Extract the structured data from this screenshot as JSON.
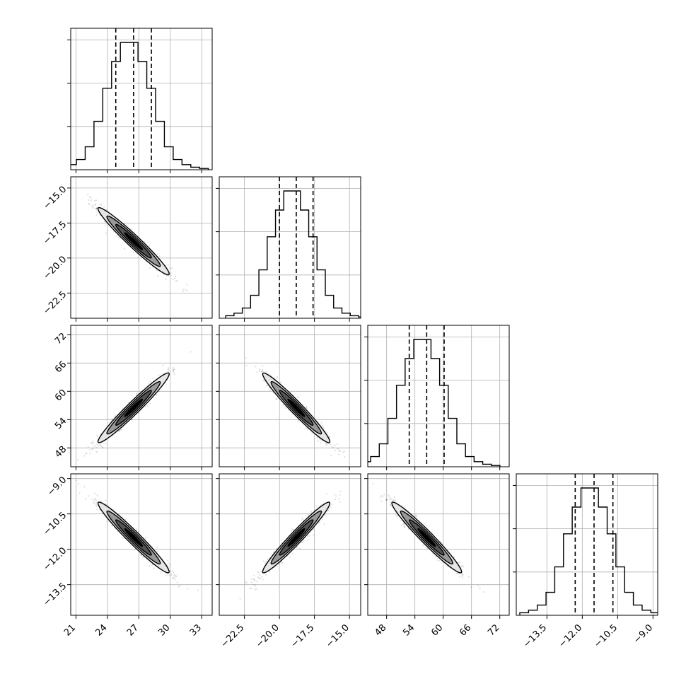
{
  "chart_data": {
    "type": "corner",
    "title": "",
    "parameters": [
      {
        "range": [
          20.5,
          34.0
        ],
        "ticks": [
          21,
          24,
          27,
          30,
          33
        ],
        "tick_labels": [
          "21",
          "24",
          "27",
          "30",
          "33"
        ],
        "mean": 26.5,
        "sd": 1.7,
        "quantiles": [
          24.8,
          26.5,
          28.2
        ],
        "hist_bins": [
          0.02,
          0.04,
          0.08,
          0.18,
          0.38,
          0.64,
          0.85,
          1.0,
          1.0,
          0.85,
          0.64,
          0.38,
          0.18,
          0.08,
          0.04,
          0.02,
          0.01
        ]
      },
      {
        "range": [
          -24.3,
          -14.2
        ],
        "ticks": [
          -22.5,
          -20.0,
          -17.5,
          -15.0
        ],
        "tick_labels": [
          "−22.5",
          "−20.0",
          "−17.5",
          "−15.0"
        ],
        "mean": -18.8,
        "sd": 1.2,
        "quantiles": [
          -20.0,
          -18.8,
          -17.6
        ],
        "hist_bins": [
          0.02,
          0.04,
          0.08,
          0.18,
          0.38,
          0.64,
          0.85,
          1.0,
          1.0,
          0.85,
          0.64,
          0.38,
          0.18,
          0.08,
          0.04,
          0.02,
          0.01
        ]
      },
      {
        "range": [
          44.0,
          74.0
        ],
        "ticks": [
          48,
          54,
          60,
          66,
          72
        ],
        "tick_labels": [
          "48",
          "54",
          "60",
          "66",
          "72"
        ],
        "mean": 56.5,
        "sd": 3.7,
        "quantiles": [
          52.8,
          56.5,
          60.2
        ],
        "hist_bins": [
          0.02,
          0.04,
          0.08,
          0.18,
          0.38,
          0.64,
          0.85,
          1.0,
          1.0,
          0.85,
          0.64,
          0.38,
          0.18,
          0.08,
          0.04,
          0.02,
          0.01
        ]
      },
      {
        "range": [
          -14.8,
          -8.8
        ],
        "ticks": [
          -13.5,
          -12.0,
          -10.5,
          -9.0
        ],
        "tick_labels": [
          "−13.5",
          "−12.0",
          "−10.5",
          "−9.0"
        ],
        "mean": -11.5,
        "sd": 0.75,
        "quantiles": [
          -12.3,
          -11.5,
          -10.7
        ],
        "hist_bins": [
          0.02,
          0.04,
          0.08,
          0.18,
          0.38,
          0.64,
          0.85,
          1.0,
          1.0,
          0.85,
          0.64,
          0.38,
          0.18,
          0.08,
          0.04,
          0.02,
          0.01
        ]
      }
    ],
    "correlations": [
      [
        1.0,
        -0.97,
        0.97,
        -0.97
      ],
      [
        -0.97,
        1.0,
        -0.97,
        0.97
      ],
      [
        0.97,
        -0.97,
        1.0,
        -0.97
      ],
      [
        -0.97,
        0.97,
        -0.97,
        1.0
      ]
    ],
    "contour_levels_sigma": [
      0.5,
      1.0,
      1.5,
      2.0
    ],
    "grid": true,
    "colors": {
      "line": "#000000",
      "grid": "#b0b0b0",
      "points": "#000000",
      "fill_levels": [
        "#000000",
        "#555555",
        "#999999",
        "#e6e6e6"
      ]
    }
  }
}
